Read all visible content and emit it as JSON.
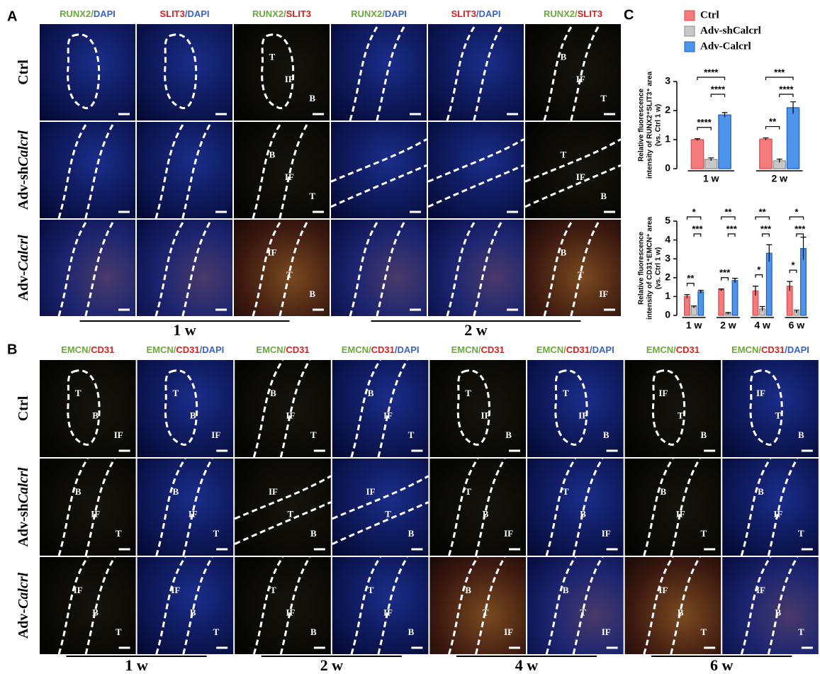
{
  "panel_a": {
    "label": "A",
    "columns": [
      [
        {
          "text": "RUNX2/",
          "color": "#6aaa3a"
        },
        {
          "text": "DAPI",
          "color": "#3a63c9"
        }
      ],
      [
        {
          "text": "SLIT3",
          "color": "#e02020"
        },
        {
          "text": "/DAPI",
          "color": "#3a63c9"
        }
      ],
      [
        {
          "text": "RUNX2/",
          "color": "#6aaa3a"
        },
        {
          "text": "SLIT3",
          "color": "#e02020"
        }
      ],
      [
        {
          "text": "RUNX2/",
          "color": "#6aaa3a"
        },
        {
          "text": "DAPI",
          "color": "#3a63c9"
        }
      ],
      [
        {
          "text": "SLIT3",
          "color": "#e02020"
        },
        {
          "text": "/DAPI",
          "color": "#3a63c9"
        }
      ],
      [
        {
          "text": "RUNX2/",
          "color": "#6aaa3a"
        },
        {
          "text": "SLIT3",
          "color": "#e02020"
        }
      ]
    ],
    "rows": [
      {
        "text": "Ctrl"
      },
      {
        "text": "Adv-sh",
        "italic": "Calcrl"
      },
      {
        "text": "Adv-",
        "italic": "Calcrl"
      }
    ],
    "cells": [
      [
        [],
        [],
        [
          "T",
          "IF",
          "B"
        ],
        [],
        [],
        [
          "B",
          "IF",
          "T"
        ]
      ],
      [
        [],
        [],
        [
          "B",
          "IF",
          "T"
        ],
        [],
        [],
        [
          "T",
          "IF",
          "B"
        ]
      ],
      [
        [],
        [],
        [
          "IF",
          "T",
          "B"
        ],
        [],
        [],
        [
          "B",
          "T",
          "IF"
        ]
      ]
    ],
    "timepoints": [
      "1 w",
      "2 w"
    ]
  },
  "panel_b": {
    "label": "B",
    "columns": [
      [
        {
          "text": "EMCN/",
          "color": "#6aaa3a"
        },
        {
          "text": "CD31",
          "color": "#e02020"
        }
      ],
      [
        {
          "text": "EMCN/",
          "color": "#6aaa3a"
        },
        {
          "text": "CD31",
          "color": "#e02020"
        },
        {
          "text": "/DAPI",
          "color": "#3a63c9"
        }
      ],
      [
        {
          "text": "EMCN/",
          "color": "#6aaa3a"
        },
        {
          "text": "CD31",
          "color": "#e02020"
        }
      ],
      [
        {
          "text": "EMCN/",
          "color": "#6aaa3a"
        },
        {
          "text": "CD31",
          "color": "#e02020"
        },
        {
          "text": "/DAPI",
          "color": "#3a63c9"
        }
      ],
      [
        {
          "text": "EMCN/",
          "color": "#6aaa3a"
        },
        {
          "text": "CD31",
          "color": "#e02020"
        }
      ],
      [
        {
          "text": "EMCN/",
          "color": "#6aaa3a"
        },
        {
          "text": "CD31",
          "color": "#e02020"
        },
        {
          "text": "/DAPI",
          "color": "#3a63c9"
        }
      ],
      [
        {
          "text": "EMCN/",
          "color": "#6aaa3a"
        },
        {
          "text": "CD31",
          "color": "#e02020"
        }
      ],
      [
        {
          "text": "EMCN/",
          "color": "#6aaa3a"
        },
        {
          "text": "CD31",
          "color": "#e02020"
        },
        {
          "text": "/DAPI",
          "color": "#3a63c9"
        }
      ]
    ],
    "rows": [
      {
        "text": "Ctrl"
      },
      {
        "text": "Adv-sh",
        "italic": "Calcrl"
      },
      {
        "text": "Adv-",
        "italic": "Calcrl"
      }
    ],
    "cells": [
      [
        [
          "T",
          "B",
          "IF"
        ],
        [
          "T",
          "B",
          "IF"
        ],
        [
          "B",
          "IF",
          "T"
        ],
        [
          "B",
          "IF",
          "T"
        ],
        [
          "T",
          "IF",
          "B"
        ],
        [
          "T",
          "IF",
          "B"
        ],
        [
          "IF",
          "T",
          "B"
        ],
        [
          "IF",
          "T",
          "B"
        ]
      ],
      [
        [
          "B",
          "IF",
          "T"
        ],
        [
          "B",
          "IF",
          "T"
        ],
        [
          "IF",
          "T",
          "B"
        ],
        [
          "IF",
          "T",
          "B"
        ],
        [
          "T",
          "B",
          "IF"
        ],
        [
          "T",
          "B",
          "IF"
        ],
        [
          "B",
          "IF",
          "T"
        ],
        [
          "B",
          "IF",
          "T"
        ]
      ],
      [
        [
          "IF",
          "B",
          "T"
        ],
        [
          "IF",
          "B",
          "T"
        ],
        [
          "T",
          "IF",
          "B"
        ],
        [
          "T",
          "IF",
          "B"
        ],
        [
          "B",
          "T",
          "IF"
        ],
        [
          "B",
          "T",
          "IF"
        ],
        [
          "IF",
          "B",
          "T"
        ],
        [
          "IF",
          "B",
          "T"
        ]
      ]
    ],
    "timepoints": [
      "1 w",
      "2 w",
      "4 w",
      "6 w"
    ]
  },
  "panel_c_label": "C",
  "chart_data": [
    {
      "type": "bar",
      "ylabel": [
        "Relative fluorescence",
        "intensity of RUNX2⁺SLIT3⁺ area",
        "(vs. Ctrl 1 w)"
      ],
      "categories": [
        "1 w",
        "2 w"
      ],
      "series": [
        {
          "name": "Ctrl",
          "color": "#f47a7c",
          "values": [
            1.0,
            1.02
          ],
          "errors": [
            0.03,
            0.04
          ]
        },
        {
          "name": "Adv-shCalcrl",
          "color": "#c8c8c8",
          "values": [
            0.32,
            0.27
          ],
          "errors": [
            0.05,
            0.06
          ]
        },
        {
          "name": "Adv-Calcrl",
          "color": "#4d94ea",
          "values": [
            1.85,
            2.1
          ],
          "errors": [
            0.08,
            0.2
          ]
        }
      ],
      "significance": [
        {
          "ctrl_vs_sh": "****",
          "ctrl_vs_calcrl": "****",
          "sh_vs_calcrl": "****"
        },
        {
          "ctrl_vs_sh": "**",
          "ctrl_vs_calcrl": "***",
          "sh_vs_calcrl": "****"
        }
      ],
      "ylim": [
        0,
        3
      ],
      "yticks": [
        0,
        1,
        2,
        3
      ],
      "legend": true
    },
    {
      "type": "bar",
      "ylabel": [
        "Relative fluorescence",
        "intensity of CD31⁺EMCN⁺ area",
        "(vs. Ctrl 1 w)"
      ],
      "categories": [
        "1 w",
        "2 w",
        "4 w",
        "6 w"
      ],
      "series": [
        {
          "name": "Ctrl",
          "color": "#f47a7c",
          "values": [
            1.0,
            1.35,
            1.3,
            1.55
          ],
          "errors": [
            0.1,
            0.05,
            0.25,
            0.25
          ]
        },
        {
          "name": "Adv-shCalcrl",
          "color": "#c8c8c8",
          "values": [
            0.45,
            0.1,
            0.35,
            0.2
          ],
          "errors": [
            0.05,
            0.05,
            0.12,
            0.08
          ]
        },
        {
          "name": "Adv-Calcrl",
          "color": "#4d94ea",
          "values": [
            1.25,
            1.85,
            3.3,
            3.55
          ],
          "errors": [
            0.08,
            0.12,
            0.45,
            0.6
          ]
        }
      ],
      "significance": [
        {
          "ctrl_vs_sh": "**",
          "ctrl_vs_calcrl": "*",
          "sh_vs_calcrl": "***"
        },
        {
          "ctrl_vs_sh": "***",
          "ctrl_vs_calcrl": "**",
          "sh_vs_calcrl": "***"
        },
        {
          "ctrl_vs_sh": "*",
          "ctrl_vs_calcrl": "**",
          "sh_vs_calcrl": "***"
        },
        {
          "ctrl_vs_sh": "*",
          "ctrl_vs_calcrl": "*",
          "sh_vs_calcrl": "***"
        }
      ],
      "ylim": [
        0,
        5
      ],
      "yticks": [
        0,
        1,
        2,
        3,
        4,
        5
      ],
      "legend": false
    }
  ]
}
